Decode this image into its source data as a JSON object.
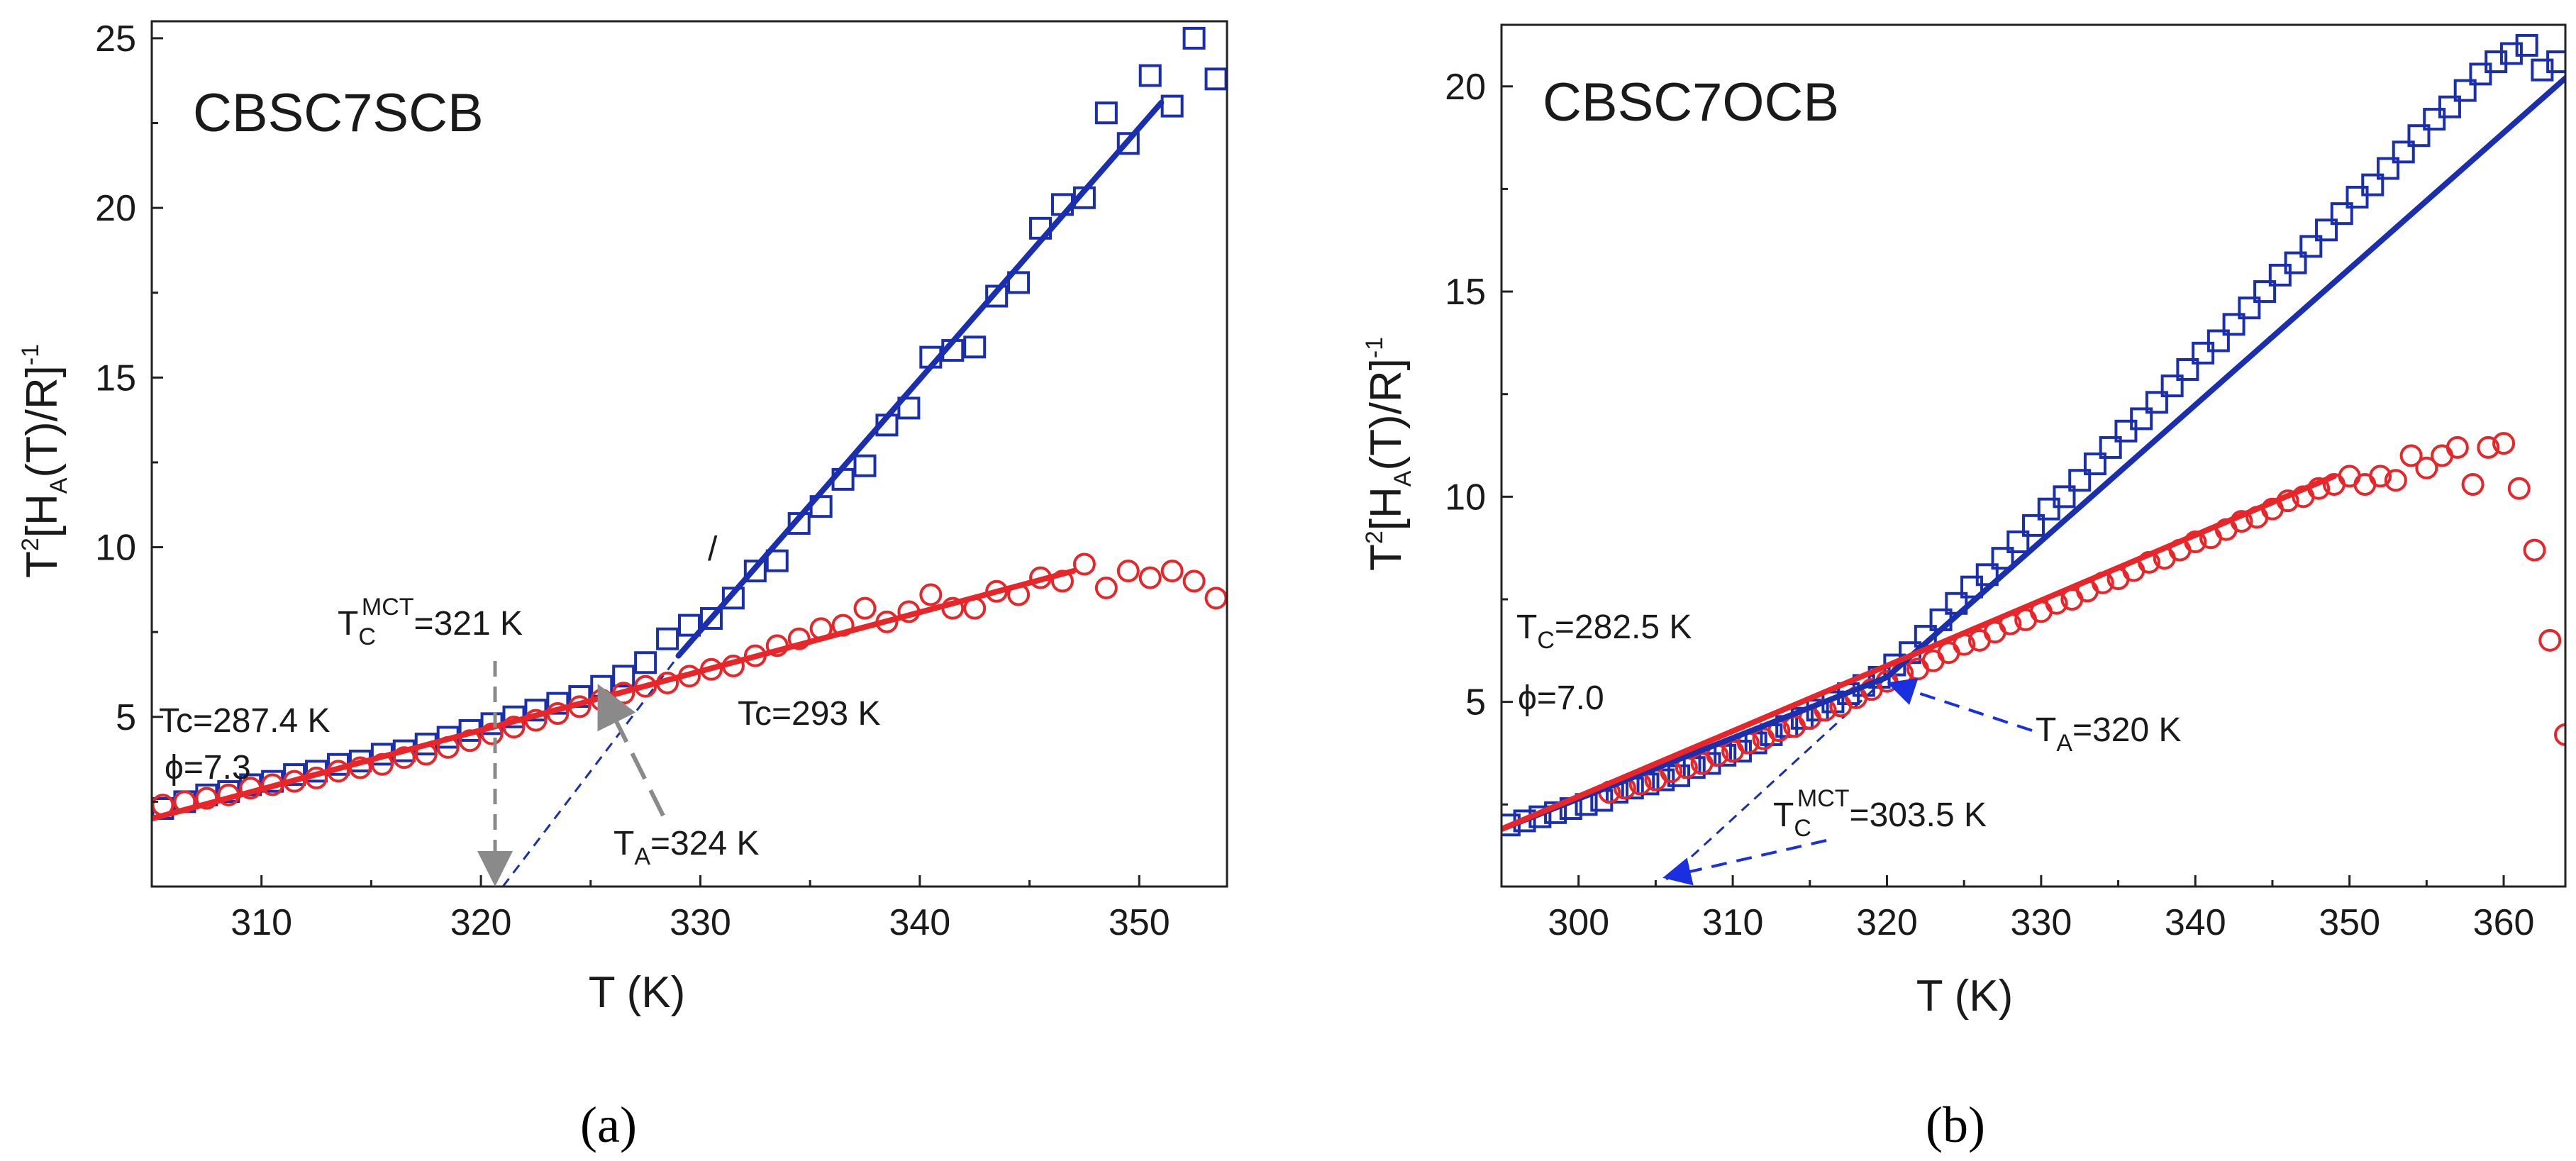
{
  "chart_data": [
    {
      "panel_label": "(a)",
      "type": "scatter",
      "title": "CBSC7SCB",
      "xlabel": "T (K)",
      "ylabel": {
        "base": "T",
        "sup1": "2",
        "mid": "[H",
        "sub": "A",
        "mid2": "(T)/R]",
        "sup2": "-1"
      },
      "xlim": [
        305,
        354
      ],
      "ylim": [
        0,
        25.5
      ],
      "xticks": [
        310,
        320,
        330,
        340,
        350
      ],
      "yticks": [
        5,
        10,
        15,
        20,
        25
      ],
      "series": [
        {
          "name": "squares",
          "marker": "square",
          "color": "#1a2fb0",
          "x": [
            305.5,
            306.5,
            307.5,
            308.5,
            309.5,
            310.5,
            311.5,
            312.5,
            313.5,
            314.5,
            315.5,
            316.5,
            317.5,
            318.5,
            319.5,
            320.5,
            321.5,
            322.5,
            323.5,
            324.5,
            325.5,
            326.5,
            327.5,
            328.5,
            329.5,
            330.5,
            331.5,
            332.5,
            333.5,
            334.5,
            335.5,
            336.5,
            337.5,
            338.5,
            339.5,
            340.5,
            341.5,
            342.5,
            343.5,
            344.5,
            345.5,
            346.5,
            347.5,
            348.5,
            349.5,
            350.5,
            351.5,
            352.5,
            353.5
          ],
          "y": [
            2.3,
            2.5,
            2.7,
            2.8,
            3.0,
            3.1,
            3.3,
            3.4,
            3.6,
            3.7,
            3.9,
            4.0,
            4.2,
            4.4,
            4.6,
            4.8,
            5.0,
            5.2,
            5.4,
            5.6,
            5.9,
            6.2,
            6.6,
            7.3,
            7.7,
            7.9,
            8.5,
            9.3,
            9.6,
            10.7,
            11.2,
            12.0,
            12.4,
            13.6,
            14.1,
            15.6,
            15.8,
            15.9,
            17.4,
            17.8,
            19.4,
            20.1,
            20.3,
            22.8,
            21.9,
            23.9,
            23.0,
            25.0,
            23.8
          ]
        },
        {
          "name": "circles",
          "marker": "circle",
          "color": "#e8262a",
          "x": [
            305.5,
            306.5,
            307.5,
            308.5,
            309.5,
            310.5,
            311.5,
            312.5,
            313.5,
            314.5,
            315.5,
            316.5,
            317.5,
            318.5,
            319.5,
            320.5,
            321.5,
            322.5,
            323.5,
            324.5,
            325.5,
            326.5,
            327.5,
            328.5,
            329.5,
            330.5,
            331.5,
            332.5,
            333.5,
            334.5,
            335.5,
            336.5,
            337.5,
            338.5,
            339.5,
            340.5,
            341.5,
            342.5,
            343.5,
            344.5,
            345.5,
            346.5,
            347.5,
            348.5,
            349.5,
            350.5,
            351.5,
            352.5,
            353.5
          ],
          "y": [
            2.4,
            2.5,
            2.6,
            2.7,
            2.9,
            3.0,
            3.1,
            3.2,
            3.4,
            3.5,
            3.6,
            3.8,
            3.9,
            4.1,
            4.3,
            4.5,
            4.7,
            4.9,
            5.1,
            5.3,
            5.5,
            5.7,
            5.9,
            6.0,
            6.2,
            6.4,
            6.5,
            6.8,
            7.1,
            7.3,
            7.6,
            7.7,
            8.2,
            7.8,
            8.1,
            8.6,
            8.2,
            8.2,
            8.7,
            8.6,
            9.1,
            9.0,
            9.5,
            8.8,
            9.3,
            9.1,
            9.3,
            9.0,
            8.5
          ]
        }
      ],
      "fits": [
        {
          "name": "blue-fit",
          "color": "#1a2fb0",
          "x": [
            329,
            351
          ],
          "y": [
            6.8,
            23.1
          ]
        },
        {
          "name": "red-fit",
          "color": "#e8262a",
          "x": [
            305,
            347
          ],
          "y": [
            2.0,
            9.3
          ]
        }
      ],
      "extrapolation": {
        "color": "#1a2fb0",
        "x": [
          321,
          329
        ],
        "y": [
          0,
          6.8
        ]
      },
      "annotations": {
        "tc_mct": {
          "base": "T",
          "sub": "C",
          "sup": "MCT",
          "rest": "=321 K",
          "x": 320.7
        },
        "tc_left": "Tc=287.4 K",
        "phi": "ϕ=7.3",
        "tc_right": "Tc=293 K",
        "ta": {
          "base": "T",
          "sub": "A",
          "rest": "=324 K"
        },
        "slash": "/"
      }
    },
    {
      "panel_label": "(b)",
      "type": "scatter",
      "title": "CBSC7OCB",
      "xlabel": "T (K)",
      "ylabel": {
        "base": "T",
        "sup1": "2",
        "mid": "[H",
        "sub": "A",
        "mid2": "(T)/R]",
        "sup2": "-1"
      },
      "xlim": [
        295,
        364
      ],
      "ylim": [
        0.5,
        21.5
      ],
      "xticks": [
        300,
        310,
        320,
        330,
        340,
        350,
        360
      ],
      "yticks": [
        5,
        10,
        15,
        20
      ],
      "series": [
        {
          "name": "squares",
          "marker": "square",
          "color": "#1a2fb0",
          "x": [
            295.5,
            296.5,
            297.5,
            298.5,
            299.5,
            300.5,
            301.5,
            302.5,
            303.5,
            304.5,
            305.5,
            306.5,
            307.5,
            308.5,
            309.5,
            310.5,
            311.5,
            312.5,
            313.5,
            314.5,
            315.5,
            316.5,
            317.5,
            318.5,
            319.5,
            320.5,
            321.5,
            322.5,
            323.5,
            324.5,
            325.5,
            326.5,
            327.5,
            328.5,
            329.5,
            330.5,
            331.5,
            332.5,
            333.5,
            334.5,
            335.5,
            336.5,
            337.5,
            338.5,
            339.5,
            340.5,
            341.5,
            342.5,
            343.5,
            344.5,
            345.5,
            346.5,
            347.5,
            348.5,
            349.5,
            350.5,
            351.5,
            352.5,
            353.5,
            354.5,
            355.5,
            356.5,
            357.5,
            358.5,
            359.5,
            360.5,
            361.5,
            362.5,
            363.5
          ],
          "y": [
            2.0,
            2.1,
            2.2,
            2.3,
            2.4,
            2.5,
            2.6,
            2.8,
            2.9,
            3.0,
            3.1,
            3.2,
            3.4,
            3.5,
            3.7,
            3.8,
            4.0,
            4.2,
            4.4,
            4.6,
            4.8,
            5.0,
            5.2,
            5.4,
            5.6,
            5.9,
            6.2,
            6.6,
            7.0,
            7.4,
            7.8,
            8.1,
            8.5,
            8.9,
            9.3,
            9.7,
            10.0,
            10.4,
            10.8,
            11.2,
            11.6,
            11.9,
            12.3,
            12.7,
            13.1,
            13.5,
            13.8,
            14.2,
            14.6,
            15.0,
            15.4,
            15.7,
            16.1,
            16.5,
            16.9,
            17.3,
            17.6,
            18.0,
            18.4,
            18.8,
            19.2,
            19.5,
            19.9,
            20.3,
            20.6,
            20.8,
            21.0,
            20.4,
            20.6
          ]
        },
        {
          "name": "circles",
          "marker": "circle",
          "color": "#e8262a",
          "x": [
            302,
            303,
            304,
            305,
            306,
            307,
            308,
            309,
            310,
            311,
            312,
            313,
            314,
            315,
            316,
            317,
            318,
            319,
            320,
            321,
            322,
            323,
            324,
            325,
            326,
            327,
            328,
            329,
            330,
            331,
            332,
            333,
            334,
            335,
            336,
            337,
            338,
            339,
            340,
            341,
            342,
            343,
            344,
            345,
            346,
            347,
            348,
            349,
            350,
            351,
            352,
            353,
            354,
            355,
            356,
            357,
            358,
            359,
            360,
            361,
            362,
            363,
            364
          ],
          "y": [
            2.8,
            2.9,
            3.0,
            3.1,
            3.3,
            3.4,
            3.5,
            3.7,
            3.8,
            4.0,
            4.1,
            4.3,
            4.4,
            4.6,
            4.8,
            4.9,
            5.1,
            5.3,
            5.5,
            5.7,
            5.8,
            6.0,
            6.2,
            6.4,
            6.5,
            6.7,
            6.9,
            7.0,
            7.2,
            7.4,
            7.5,
            7.7,
            7.9,
            8.0,
            8.2,
            8.4,
            8.5,
            8.7,
            8.9,
            9.0,
            9.2,
            9.4,
            9.5,
            9.7,
            9.9,
            10.0,
            10.2,
            10.3,
            10.5,
            10.3,
            10.5,
            10.4,
            11.0,
            10.7,
            11.0,
            11.2,
            10.3,
            11.2,
            11.3,
            10.2,
            8.7,
            6.5,
            4.2
          ]
        }
      ],
      "fits": [
        {
          "name": "blue-fit",
          "color": "#1a2fb0",
          "x": [
            295,
            320,
            364
          ],
          "y": [
            1.9,
            5.6,
            20.2
          ]
        },
        {
          "name": "red-fit",
          "color": "#e8262a",
          "x": [
            295,
            349
          ],
          "y": [
            1.9,
            10.5
          ]
        }
      ],
      "extrapolation": {
        "color": "#1a2fb0",
        "x": [
          320,
          305.5
        ],
        "y": [
          5.6,
          0.6
        ]
      },
      "annotations": {
        "tc_left": {
          "base": "T",
          "sub": "C",
          "rest": "=282.5 K"
        },
        "phi": "ϕ=7.0",
        "ta": {
          "base": "T",
          "sub": "A",
          "rest": "=320 K"
        },
        "tc_mct": {
          "base": "T",
          "sub": "C",
          "sup": "MCT",
          "rest": "=303.5 K"
        }
      }
    }
  ]
}
